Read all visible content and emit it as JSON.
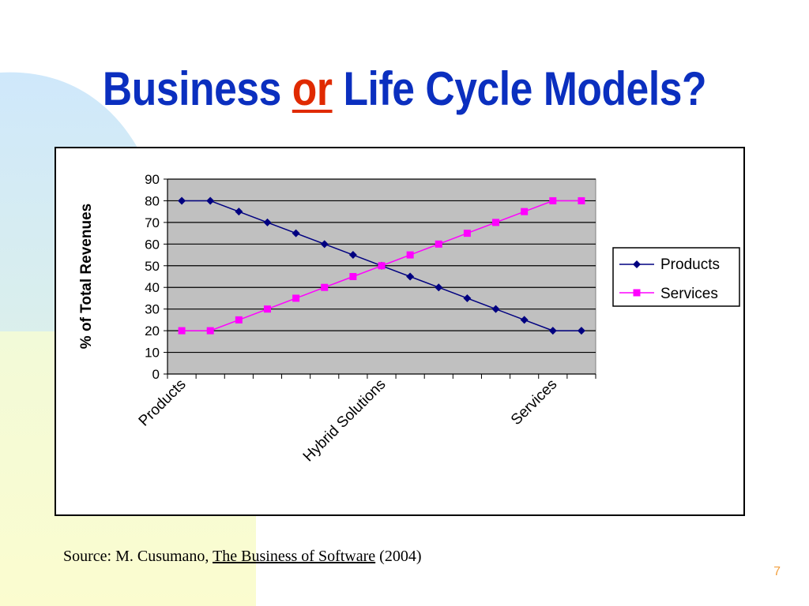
{
  "slide": {
    "title_before": "Business",
    "title_accent": "or",
    "title_after": "Life Cycle Models?",
    "source_prefix": "Source: M. Cusumano,",
    "source_book": "The Business of Software",
    "source_suffix": "(2004)",
    "page_number": "7"
  },
  "colors": {
    "title": "#0b2fbf",
    "accent": "#e02a00",
    "plot_bg": "#c0c0c0",
    "products": "#000080",
    "services": "#ff00ff",
    "page_number": "#f2a040"
  },
  "chart_data": {
    "type": "line",
    "title": "",
    "xlabel": "",
    "ylabel": "% of Total Revenues",
    "ylim": [
      0,
      90
    ],
    "yticks": [
      0,
      10,
      20,
      30,
      40,
      50,
      60,
      70,
      80,
      90
    ],
    "x": [
      1,
      2,
      3,
      4,
      5,
      6,
      7,
      8,
      9,
      10,
      11,
      12,
      13,
      14,
      15
    ],
    "xtick_labels": [
      {
        "index": 1,
        "label": "Products"
      },
      {
        "index": 8,
        "label": "Hybrid Solutions"
      },
      {
        "index": 14,
        "label": "Services"
      }
    ],
    "grid": "horizontal",
    "legend": "right",
    "series": [
      {
        "name": "Products",
        "marker": "diamond",
        "values": [
          80,
          80,
          75,
          70,
          65,
          60,
          55,
          50,
          45,
          40,
          35,
          30,
          25,
          20,
          20
        ]
      },
      {
        "name": "Services",
        "marker": "square",
        "values": [
          20,
          20,
          25,
          30,
          35,
          40,
          45,
          50,
          55,
          60,
          65,
          70,
          75,
          80,
          80
        ]
      }
    ]
  }
}
